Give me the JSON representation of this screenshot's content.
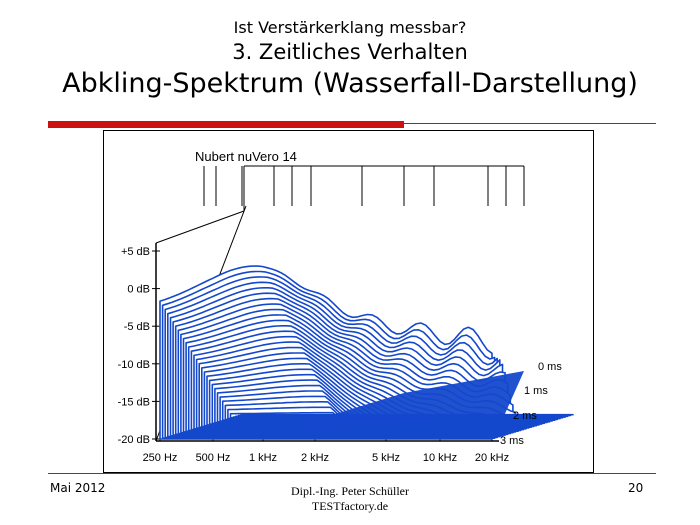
{
  "slide": {
    "title_line1": "Ist Verstärkerklang messbar?",
    "title_line2": "3. Zeitliches Verhalten",
    "title_line3": "Abkling-Spektrum (Wasserfall-Darstellung)",
    "footer_date": "Mai 2012",
    "footer_author_line1": "Dipl.-Ing. Peter Schüller",
    "footer_author_line2": "TESTfactory.de",
    "page_number": "20",
    "accent_color": "#cc1111"
  },
  "chart_data": {
    "type": "waterfall",
    "title": "Nubert nuVero 14",
    "series_color": "#1448cc",
    "x_ticks": [
      "250 Hz",
      "500 Hz",
      "1 kHz",
      "2 kHz",
      "5 kHz",
      "10 kHz",
      "20 kHz"
    ],
    "y_ticks": [
      "+5 dB",
      "0 dB",
      "-5 dB",
      "-10 dB",
      "-15 dB",
      "-20 dB"
    ],
    "y_values": [
      5,
      0,
      -5,
      -10,
      -15,
      -20
    ],
    "z_ticks": [
      "0 ms",
      "1 ms",
      "2 ms",
      "3 ms"
    ],
    "z_values": [
      0,
      1,
      2,
      3
    ],
    "slice_count": 32,
    "xlim_hz": [
      200,
      20000
    ],
    "ylim_db": [
      -22,
      8
    ]
  }
}
